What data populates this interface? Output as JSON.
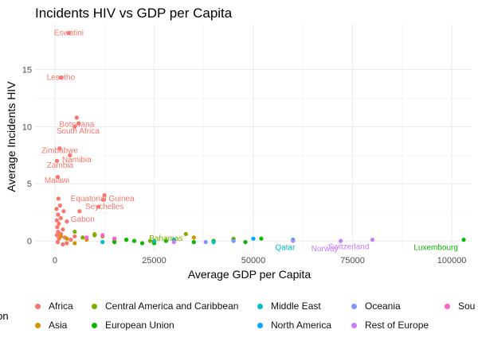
{
  "chart_data": {
    "type": "scatter",
    "title": "Incidents HIV vs GDP per Capita",
    "xlabel": "Average GDP per Capita",
    "ylabel": "Average Incidents HIV",
    "xlim": [
      -5000,
      105000
    ],
    "ylim": [
      -0.9,
      19
    ],
    "x_ticks": [
      0,
      25000,
      50000,
      75000,
      100000
    ],
    "x_tick_labels": [
      "0",
      "25000",
      "50000",
      "75000",
      "100000"
    ],
    "y_ticks": [
      0,
      5,
      10,
      15
    ],
    "y_tick_labels": [
      "0",
      "5",
      "10",
      "15"
    ],
    "grid": true,
    "legend_position": "bottom",
    "legend_title": "Region",
    "series": [
      {
        "name": "Africa",
        "color": "#F8766D",
        "points": [
          [
            3500,
            18.2
          ],
          [
            1500,
            14.3
          ],
          [
            5500,
            10.8
          ],
          [
            6000,
            10.3
          ],
          [
            5000,
            10.0
          ],
          [
            1200,
            8.1
          ],
          [
            3800,
            7.5
          ],
          [
            500,
            7.0
          ],
          [
            700,
            5.6
          ],
          [
            12500,
            4.0
          ],
          [
            12200,
            3.6
          ],
          [
            11000,
            3.0
          ],
          [
            6200,
            2.6
          ],
          [
            900,
            3.7
          ],
          [
            1300,
            3.1
          ],
          [
            400,
            2.8
          ],
          [
            2200,
            2.6
          ],
          [
            800,
            2.3
          ],
          [
            1500,
            2.0
          ],
          [
            500,
            1.8
          ],
          [
            3000,
            1.7
          ],
          [
            1000,
            1.5
          ],
          [
            600,
            1.2
          ],
          [
            2000,
            1.0
          ],
          [
            800,
            0.8
          ],
          [
            1500,
            0.6
          ],
          [
            500,
            0.5
          ],
          [
            2500,
            0.3
          ],
          [
            1000,
            0.2
          ],
          [
            700,
            -0.1
          ],
          [
            2000,
            -0.3
          ],
          [
            4000,
            0.1
          ],
          [
            3000,
            -0.2
          ],
          [
            5000,
            0.4
          ]
        ],
        "labels": [
          {
            "text": "Eswatini",
            "x": 3500,
            "y": 18.2
          },
          {
            "text": "Lesotho",
            "x": 1500,
            "y": 14.3
          },
          {
            "text": "Botswana",
            "x": 5500,
            "y": 10.2
          },
          {
            "text": "South Africa",
            "x": 5800,
            "y": 9.6
          },
          {
            "text": "Zimbabwe",
            "x": 1200,
            "y": 7.9
          },
          {
            "text": "Namibia",
            "x": 5500,
            "y": 7.1
          },
          {
            "text": "Zambia",
            "x": 1300,
            "y": 6.6
          },
          {
            "text": "Malawi",
            "x": 500,
            "y": 5.3
          },
          {
            "text": "Equatorial Guinea",
            "x": 12000,
            "y": 3.7
          },
          {
            "text": "Seychelles",
            "x": 12500,
            "y": 3.0
          },
          {
            "text": "Gabon",
            "x": 7000,
            "y": 1.9
          }
        ]
      },
      {
        "name": "Asia",
        "color": "#CD9600",
        "points": [
          [
            3000,
            0.2
          ],
          [
            8000,
            0.1
          ],
          [
            15000,
            0.0
          ],
          [
            25000,
            -0.1
          ],
          [
            35000,
            0.3
          ],
          [
            45000,
            0.2
          ],
          [
            1500,
            0.4
          ],
          [
            5000,
            -0.2
          ],
          [
            10000,
            0.6
          ],
          [
            20000,
            0.0
          ]
        ],
        "labels": []
      },
      {
        "name": "Central America and Caribbean",
        "color": "#7CAE00",
        "points": [
          [
            7000,
            0.3
          ],
          [
            10000,
            0.5
          ],
          [
            15000,
            0.2
          ],
          [
            24000,
            0.0
          ],
          [
            33000,
            0.6
          ],
          [
            5000,
            0.8
          ],
          [
            12000,
            0.4
          ],
          [
            18000,
            0.1
          ]
        ],
        "labels": [
          {
            "text": "Bahamas",
            "x": 28000,
            "y": 0.2
          }
        ]
      },
      {
        "name": "European Union",
        "color": "#0CB702",
        "points": [
          [
            15000,
            -0.1
          ],
          [
            20000,
            0.0
          ],
          [
            25000,
            -0.2
          ],
          [
            30000,
            0.1
          ],
          [
            35000,
            -0.1
          ],
          [
            40000,
            0.0
          ],
          [
            45000,
            0.1
          ],
          [
            48000,
            -0.1
          ],
          [
            52000,
            0.2
          ],
          [
            103000,
            0.1
          ],
          [
            18000,
            0.1
          ],
          [
            22000,
            -0.2
          ],
          [
            28000,
            0.0
          ]
        ],
        "labels": [
          {
            "text": "Luxembourg",
            "x": 96000,
            "y": -0.6
          }
        ]
      },
      {
        "name": "Middle East",
        "color": "#00BFC4",
        "points": [
          [
            60000,
            0.1
          ],
          [
            12000,
            -0.1
          ],
          [
            25000,
            0.0
          ],
          [
            40000,
            -0.1
          ]
        ],
        "labels": [
          {
            "text": "Qatar",
            "x": 58000,
            "y": -0.6
          }
        ]
      },
      {
        "name": "North America",
        "color": "#00A9FF",
        "points": [
          [
            50000,
            0.2
          ],
          [
            45000,
            0.0
          ],
          [
            30000,
            0.1
          ]
        ],
        "labels": []
      },
      {
        "name": "Oceania",
        "color": "#8494FF",
        "points": [
          [
            45000,
            0.0
          ],
          [
            38000,
            -0.1
          ]
        ],
        "labels": []
      },
      {
        "name": "Rest of Europe",
        "color": "#C77CFF",
        "points": [
          [
            72000,
            0.0
          ],
          [
            80000,
            0.1
          ],
          [
            30000,
            -0.1
          ],
          [
            60000,
            0.0
          ]
        ],
        "labels": [
          {
            "text": "Switzerland",
            "x": 74000,
            "y": -0.5
          },
          {
            "text": "Norway",
            "x": 68000,
            "y": -0.7
          }
        ]
      },
      {
        "name": "South America",
        "color": "#FF61CC",
        "points": [
          [
            8000,
            0.3
          ],
          [
            12000,
            0.5
          ],
          [
            15000,
            0.2
          ]
        ],
        "labels": []
      }
    ]
  },
  "legend": {
    "items": [
      {
        "label": "Africa",
        "color": "#F8766D"
      },
      {
        "label": "Central America and Caribbean",
        "color": "#7CAE00"
      },
      {
        "label": "Middle East",
        "color": "#00BFC4"
      },
      {
        "label": "Oceania",
        "color": "#8494FF"
      },
      {
        "label": "Sou",
        "color": "#FF61CC"
      },
      {
        "label": "Asia",
        "color": "#CD9600"
      },
      {
        "label": "European Union",
        "color": "#0CB702"
      },
      {
        "label": "North America",
        "color": "#00A9FF"
      },
      {
        "label": "Rest of Europe",
        "color": "#C77CFF"
      }
    ],
    "title_visible": "gion"
  }
}
